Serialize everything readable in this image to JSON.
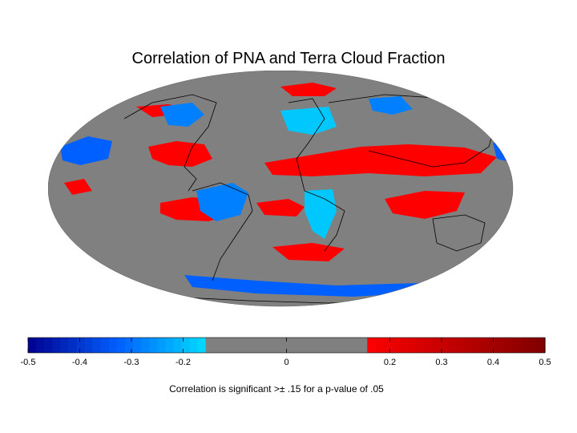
{
  "title": "Correlation of PNA and Terra Cloud Fraction",
  "note": "Correlation is significant >± .15 for a p-value of .05",
  "colorbar": {
    "min": -0.5,
    "max": 0.5,
    "ticks": [
      {
        "value": -0.5,
        "label": "-0.5"
      },
      {
        "value": -0.4,
        "label": "-0.4"
      },
      {
        "value": -0.3,
        "label": "-0.3"
      },
      {
        "value": -0.2,
        "label": "-0.2"
      },
      {
        "value": 0,
        "label": "0"
      },
      {
        "value": 0.2,
        "label": "0.2"
      },
      {
        "value": 0.3,
        "label": "0.3"
      },
      {
        "value": 0.4,
        "label": "0.4"
      },
      {
        "value": 0.5,
        "label": "0.5"
      }
    ],
    "masked_range": [
      -0.15,
      0.15
    ],
    "colors": {
      "neg_strong": "#00008f",
      "neg_mid": "#0060ff",
      "neg_weak": "#00e0ff",
      "masked": "#808080",
      "pos_weak": "#ff0000",
      "pos_strong": "#800000"
    }
  },
  "map": {
    "projection": "Mollweide",
    "ocean_color": "#808080",
    "coast_color": "#000000"
  }
}
